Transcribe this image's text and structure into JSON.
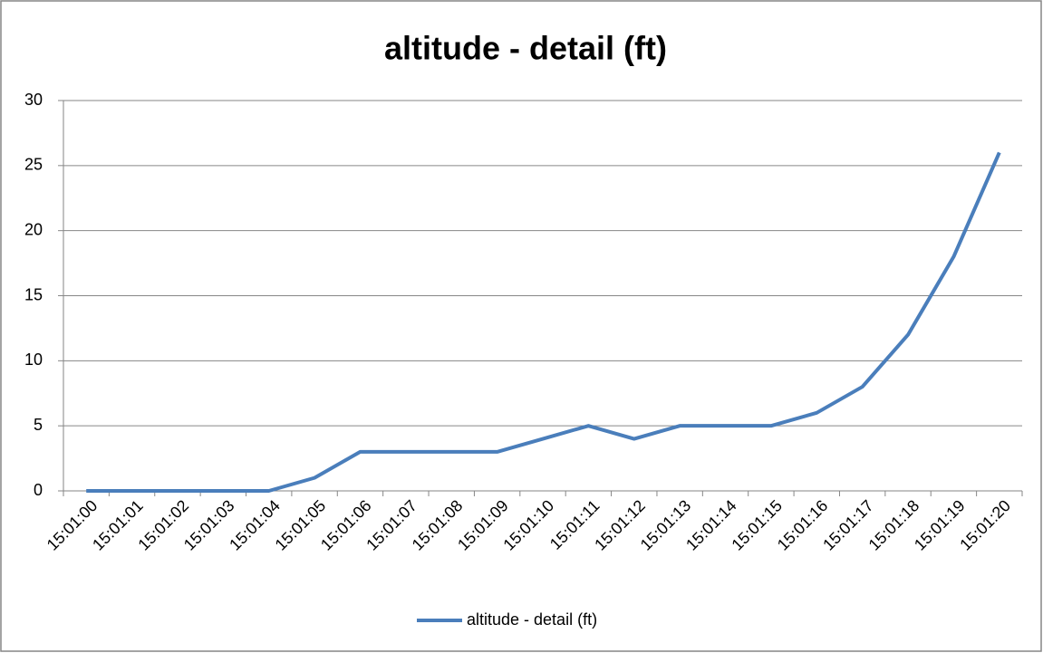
{
  "chart_data": {
    "type": "line",
    "title": "altitude - detail (ft)",
    "categories": [
      "15:01:00",
      "15:01:01",
      "15:01:02",
      "15:01:03",
      "15:01:04",
      "15:01:05",
      "15:01:06",
      "15:01:07",
      "15:01:08",
      "15:01:09",
      "15:01:10",
      "15:01:11",
      "15:01:12",
      "15:01:13",
      "15:01:14",
      "15:01:15",
      "15:01:16",
      "15:01:17",
      "15:01:18",
      "15:01:19",
      "15:01:20"
    ],
    "series": [
      {
        "name": "altitude - detail (ft)",
        "color": "#4a7ebb",
        "values": [
          0,
          0,
          0,
          0,
          0,
          1,
          3,
          3,
          3,
          3,
          4,
          5,
          4,
          5,
          5,
          5,
          6,
          8,
          12,
          18,
          26
        ]
      }
    ],
    "ylim": [
      0,
      30
    ],
    "yticks": [
      0,
      5,
      10,
      15,
      20,
      25,
      30
    ],
    "grid": true,
    "legend": "bottom"
  }
}
